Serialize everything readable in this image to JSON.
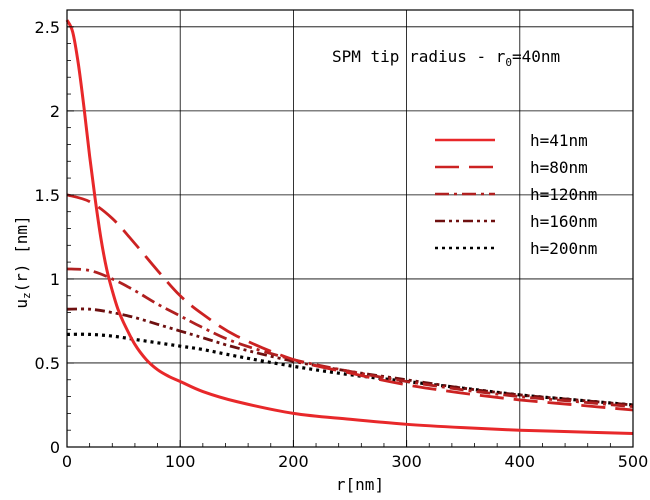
{
  "chart_data": {
    "type": "line",
    "title": "",
    "annotation": {
      "prefix": "SPM tip radius - r",
      "subscript": "0",
      "suffix": "=40nm"
    },
    "xlabel": "r[nm]",
    "ylabel": {
      "prefix": "u",
      "subscript": "z",
      "suffix": "(r) [nm]"
    },
    "xlim": [
      0,
      500
    ],
    "ylim": [
      0,
      2.6
    ],
    "xticks": [
      0,
      100,
      200,
      300,
      400,
      500
    ],
    "xtick_labels": [
      "0",
      "100",
      "200",
      "300",
      "400",
      "500"
    ],
    "yticks": [
      0,
      0.5,
      1,
      1.5,
      2,
      2.5
    ],
    "ytick_labels": [
      "0",
      "0.5",
      "1",
      "1.5",
      "2",
      "2.5"
    ],
    "grid": true,
    "legend_position": "right",
    "series": [
      {
        "name": "h=41nm",
        "color": "#e8282a",
        "dash": "solid",
        "x": [
          0,
          5,
          10,
          15,
          20,
          25,
          30,
          35,
          40,
          45,
          50,
          60,
          70,
          80,
          90,
          100,
          120,
          150,
          200,
          250,
          300,
          350,
          400,
          450,
          500
        ],
        "y": [
          2.54,
          2.47,
          2.28,
          2.02,
          1.73,
          1.47,
          1.24,
          1.06,
          0.93,
          0.82,
          0.74,
          0.61,
          0.52,
          0.46,
          0.42,
          0.39,
          0.33,
          0.27,
          0.2,
          0.165,
          0.135,
          0.115,
          0.1,
          0.09,
          0.08
        ]
      },
      {
        "name": "h=80nm",
        "color": "#cc2222",
        "dash": "long-dash",
        "x": [
          0,
          20,
          40,
          60,
          80,
          100,
          120,
          150,
          200,
          250,
          300,
          350,
          400,
          450,
          500
        ],
        "y": [
          1.5,
          1.46,
          1.36,
          1.21,
          1.05,
          0.9,
          0.79,
          0.66,
          0.52,
          0.44,
          0.37,
          0.32,
          0.28,
          0.25,
          0.22
        ]
      },
      {
        "name": "h=120nm",
        "color": "#b02020",
        "dash": "dash-dot",
        "x": [
          0,
          20,
          40,
          60,
          80,
          100,
          120,
          150,
          200,
          250,
          300,
          350,
          400,
          450,
          500
        ],
        "y": [
          1.06,
          1.05,
          1.0,
          0.93,
          0.85,
          0.78,
          0.71,
          0.62,
          0.52,
          0.45,
          0.39,
          0.34,
          0.3,
          0.27,
          0.24
        ]
      },
      {
        "name": "h=160nm",
        "color": "#6e1010",
        "dash": "dash-dot-dot",
        "x": [
          0,
          20,
          40,
          60,
          80,
          100,
          120,
          150,
          200,
          250,
          300,
          350,
          400,
          450,
          500
        ],
        "y": [
          0.82,
          0.82,
          0.8,
          0.77,
          0.73,
          0.69,
          0.65,
          0.59,
          0.51,
          0.45,
          0.4,
          0.35,
          0.31,
          0.28,
          0.25
        ]
      },
      {
        "name": "h=200nm",
        "color": "#000000",
        "dash": "dotted",
        "x": [
          0,
          20,
          40,
          60,
          80,
          100,
          120,
          150,
          200,
          250,
          300,
          350,
          400,
          450,
          500
        ],
        "y": [
          0.67,
          0.67,
          0.66,
          0.64,
          0.62,
          0.6,
          0.58,
          0.54,
          0.48,
          0.43,
          0.39,
          0.35,
          0.31,
          0.28,
          0.25
        ]
      }
    ]
  }
}
